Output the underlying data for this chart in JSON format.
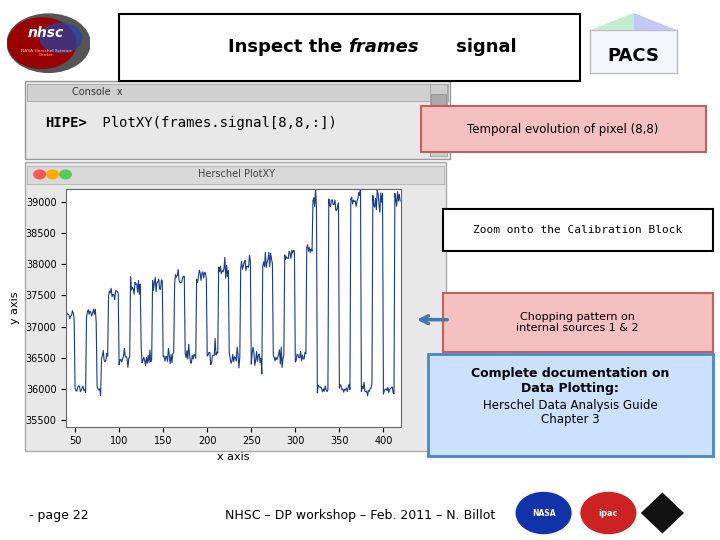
{
  "title_pre": "Inspect the ",
  "title_italic": "frames",
  "title_post": " signal",
  "hipe_bold": "HIPE>",
  "hipe_rest": " PlotXY(frames.signal[8,8,:])",
  "console_title": "Console",
  "plot_window_title": "Herschel PlotXY",
  "xlabel": "x axis",
  "ylabel": "y axis",
  "x_ticks": [
    50,
    100,
    150,
    200,
    250,
    300,
    350,
    400
  ],
  "y_ticks": [
    35500,
    36000,
    36500,
    37000,
    37500,
    38000,
    38500,
    39000
  ],
  "annotation1": "Temporal evolution of pixel (8,8)",
  "annotation2": "Zoom onto the Calibration Block",
  "annotation3": "Chopping pattern on\ninternal sources 1 & 2",
  "annotation4_line1": "Complete documentation on",
  "annotation4_line2": "Data Plotting:",
  "annotation4_line3": "Herschel Data Analysis Guide",
  "annotation4_line4": "Chapter 3",
  "footer_left": "- page 22",
  "footer_center": "NHSC – DP workshop – Feb. 2011 – N. Billot",
  "bg_color": "#ffffff",
  "line_color": "#1a3a8a",
  "annotation1_bg": "#f5c0c0",
  "annotation1_border": "#c06060",
  "annotation3_bg": "#f5c0c0",
  "annotation3_border": "#c06060",
  "annotation4_bg": "#cce0ff",
  "annotation4_border": "#4488cc"
}
